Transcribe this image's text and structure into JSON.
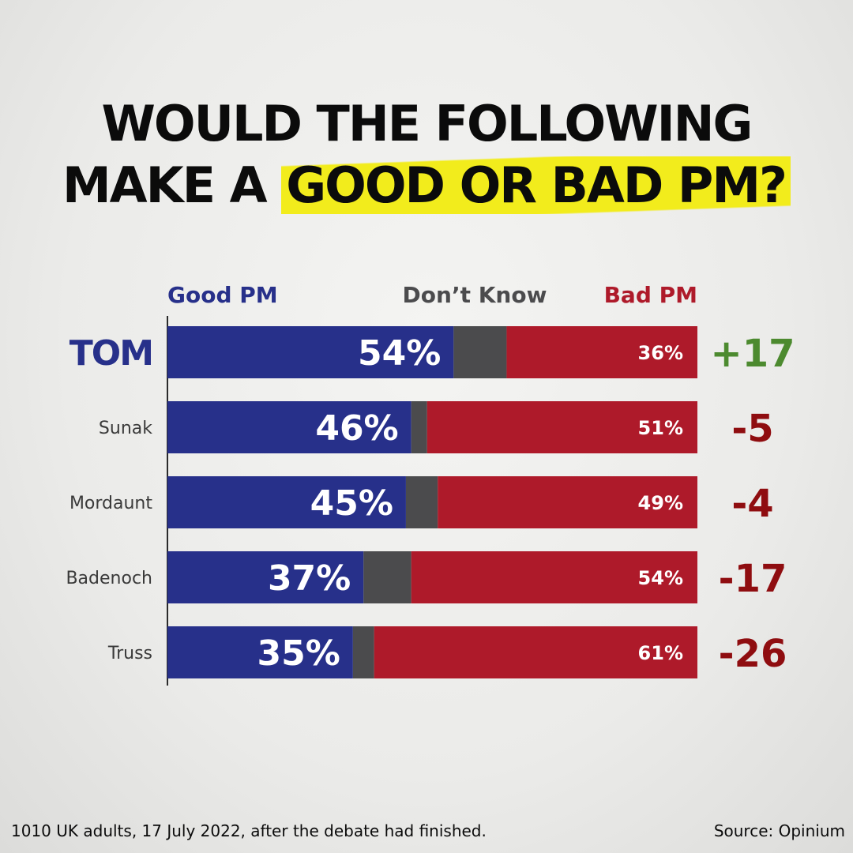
{
  "headline": {
    "line1": "WOULD THE FOLLOWING",
    "line2_pre": "MAKE A ",
    "line2_highlight": "GOOD OR BAD PM?"
  },
  "colors": {
    "good": "#27308a",
    "dont_know": "#4b4b4d",
    "bad": "#ae1a2a",
    "positive_net": "#4c8a2f",
    "negative_net": "#8f0d10",
    "highlight": "#f2ec1c"
  },
  "chart_data": {
    "type": "bar",
    "stacked": true,
    "orientation": "horizontal",
    "legend": [
      "Good PM",
      "Don’t Know",
      "Bad PM"
    ],
    "legend_placement": "top",
    "categories": [
      "TOM",
      "Sunak",
      "Mordaunt",
      "Badenoch",
      "Truss"
    ],
    "series": [
      {
        "name": "Good PM",
        "values": [
          54,
          46,
          45,
          37,
          35
        ]
      },
      {
        "name": "Don’t Know",
        "values": [
          10,
          3,
          6,
          9,
          4
        ]
      },
      {
        "name": "Bad PM",
        "values": [
          36,
          51,
          49,
          54,
          61
        ]
      }
    ],
    "good_labels": [
      "54%",
      "46%",
      "45%",
      "37%",
      "35%"
    ],
    "bad_labels": [
      "36%",
      "51%",
      "49%",
      "54%",
      "61%"
    ],
    "net": [
      "+17",
      "-5",
      "-4",
      "-17",
      "-26"
    ],
    "xlim": [
      0,
      100
    ]
  },
  "footer": {
    "left": "1010 UK adults, 17 July 2022, after the debate had finished.",
    "right": "Source: Opinium"
  }
}
